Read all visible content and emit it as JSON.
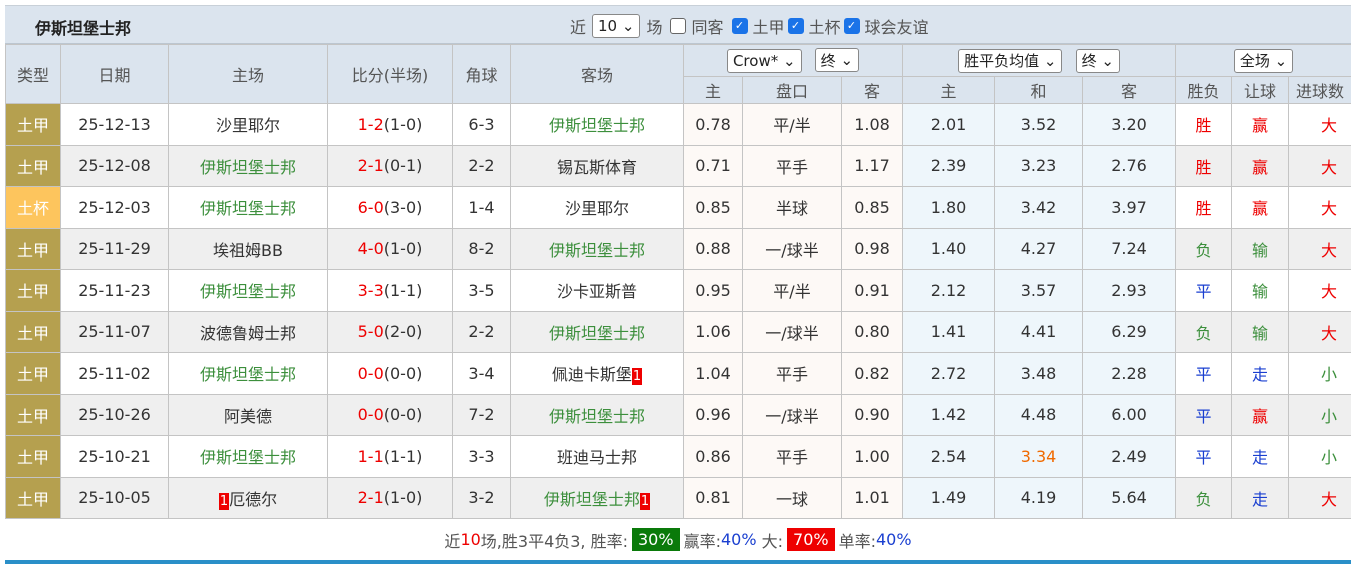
{
  "team": "伊斯坦堡士邦",
  "filters": {
    "near_label": "近",
    "count": "10",
    "games_label": "场",
    "same_label": "同客",
    "checks": [
      {
        "label": "土甲",
        "checked": true
      },
      {
        "label": "土杯",
        "checked": true
      },
      {
        "label": "球会友谊",
        "checked": true
      }
    ]
  },
  "headers": {
    "type": "类型",
    "date": "日期",
    "home": "主场",
    "score": "比分(半场)",
    "corner": "角球",
    "away": "客场",
    "company_select": "Crow*",
    "handicap_time": "终",
    "euro_select": "胜平负均值",
    "euro_time": "终",
    "period_select": "全场",
    "ah_home": "主",
    "ah_line": "盘口",
    "ah_away": "客",
    "eu_home": "主",
    "eu_draw": "和",
    "eu_away": "客",
    "result": "胜负",
    "handicap_result": "让球",
    "goals_result": "进球数"
  },
  "rows": [
    {
      "league": "土甲",
      "cup": false,
      "date": "25-12-13",
      "home": "沙里耶尔",
      "home_hl": false,
      "home_rc": "",
      "score": "1-2",
      "half": "(1-0)",
      "corner": "6-3",
      "away": "伊斯坦堡士邦",
      "away_hl": true,
      "away_rc": "",
      "ah": [
        "0.78",
        "平/半",
        "1.08"
      ],
      "eu": [
        "2.01",
        "3.52",
        "3.20"
      ],
      "res": "胜",
      "hres": "赢",
      "gres": "大"
    },
    {
      "league": "土甲",
      "cup": false,
      "date": "25-12-08",
      "home": "伊斯坦堡士邦",
      "home_hl": true,
      "home_rc": "",
      "score": "2-1",
      "half": "(0-1)",
      "corner": "2-2",
      "away": "锡瓦斯体育",
      "away_hl": false,
      "away_rc": "",
      "ah": [
        "0.71",
        "平手",
        "1.17"
      ],
      "eu": [
        "2.39",
        "3.23",
        "2.76"
      ],
      "res": "胜",
      "hres": "赢",
      "gres": "大"
    },
    {
      "league": "土杯",
      "cup": true,
      "date": "25-12-03",
      "home": "伊斯坦堡士邦",
      "home_hl": true,
      "home_rc": "",
      "score": "6-0",
      "half": "(3-0)",
      "corner": "1-4",
      "away": "沙里耶尔",
      "away_hl": false,
      "away_rc": "",
      "ah": [
        "0.85",
        "半球",
        "0.85"
      ],
      "eu": [
        "1.80",
        "3.42",
        "3.97"
      ],
      "res": "胜",
      "hres": "赢",
      "gres": "大"
    },
    {
      "league": "土甲",
      "cup": false,
      "date": "25-11-29",
      "home": "埃祖姆BB",
      "home_hl": false,
      "home_rc": "",
      "score": "4-0",
      "half": "(1-0)",
      "corner": "8-2",
      "away": "伊斯坦堡士邦",
      "away_hl": true,
      "away_rc": "",
      "ah": [
        "0.88",
        "一/球半",
        "0.98"
      ],
      "eu": [
        "1.40",
        "4.27",
        "7.24"
      ],
      "res": "负",
      "hres": "输",
      "gres": "大"
    },
    {
      "league": "土甲",
      "cup": false,
      "date": "25-11-23",
      "home": "伊斯坦堡士邦",
      "home_hl": true,
      "home_rc": "",
      "score": "3-3",
      "half": "(1-1)",
      "corner": "3-5",
      "away": "沙卡亚斯普",
      "away_hl": false,
      "away_rc": "",
      "ah": [
        "0.95",
        "平/半",
        "0.91"
      ],
      "eu": [
        "2.12",
        "3.57",
        "2.93"
      ],
      "res": "平",
      "hres": "输",
      "gres": "大"
    },
    {
      "league": "土甲",
      "cup": false,
      "date": "25-11-07",
      "home": "波德鲁姆士邦",
      "home_hl": false,
      "home_rc": "",
      "score": "5-0",
      "half": "(2-0)",
      "corner": "2-2",
      "away": "伊斯坦堡士邦",
      "away_hl": true,
      "away_rc": "",
      "ah": [
        "1.06",
        "一/球半",
        "0.80"
      ],
      "eu": [
        "1.41",
        "4.41",
        "6.29"
      ],
      "res": "负",
      "hres": "输",
      "gres": "大"
    },
    {
      "league": "土甲",
      "cup": false,
      "date": "25-11-02",
      "home": "伊斯坦堡士邦",
      "home_hl": true,
      "home_rc": "",
      "score": "0-0",
      "half": "(0-0)",
      "corner": "3-4",
      "away": "佩迪卡斯堡",
      "away_hl": false,
      "away_rc": "1",
      "ah": [
        "1.04",
        "平手",
        "0.82"
      ],
      "eu": [
        "2.72",
        "3.48",
        "2.28"
      ],
      "res": "平",
      "hres": "走",
      "gres": "小"
    },
    {
      "league": "土甲",
      "cup": false,
      "date": "25-10-26",
      "home": "阿美德",
      "home_hl": false,
      "home_rc": "",
      "score": "0-0",
      "half": "(0-0)",
      "corner": "7-2",
      "away": "伊斯坦堡士邦",
      "away_hl": true,
      "away_rc": "",
      "ah": [
        "0.96",
        "一/球半",
        "0.90"
      ],
      "eu": [
        "1.42",
        "4.48",
        "6.00"
      ],
      "res": "平",
      "hres": "赢",
      "gres": "小"
    },
    {
      "league": "土甲",
      "cup": false,
      "date": "25-10-21",
      "home": "伊斯坦堡士邦",
      "home_hl": true,
      "home_rc": "",
      "score": "1-1",
      "half": "(1-1)",
      "corner": "3-3",
      "away": "班迪马士邦",
      "away_hl": false,
      "away_rc": "",
      "ah": [
        "0.86",
        "平手",
        "1.00"
      ],
      "eu": [
        "2.54",
        "3.34",
        "2.49"
      ],
      "eu_draw_hl": true,
      "res": "平",
      "hres": "走",
      "gres": "小"
    },
    {
      "league": "土甲",
      "cup": false,
      "date": "25-10-05",
      "home": "厄德尔",
      "home_hl": false,
      "home_rc": "1",
      "score": "2-1",
      "half": "(1-0)",
      "corner": "3-2",
      "away": "伊斯坦堡士邦",
      "away_hl": true,
      "away_rc": "1",
      "ah": [
        "0.81",
        "一球",
        "1.01"
      ],
      "eu": [
        "1.49",
        "4.19",
        "5.64"
      ],
      "res": "负",
      "hres": "走",
      "gres": "大"
    }
  ],
  "summary": {
    "near": "近",
    "count": "10",
    "text": "场,胜3平4负3, 胜率:",
    "win_rate": "30%",
    "ah_label": "赢率:",
    "ah_rate": "40%",
    "big_label": "大:",
    "big_rate": "70%",
    "odd_label": "单率:",
    "odd_rate": "40%"
  },
  "colors": {
    "win": "#e00000",
    "lose": "#3c8f3c",
    "draw": "#1a3fd0",
    "league": "#b5a04f",
    "cup": "#fdc55d",
    "highlight_team": "#3c8f3c"
  }
}
